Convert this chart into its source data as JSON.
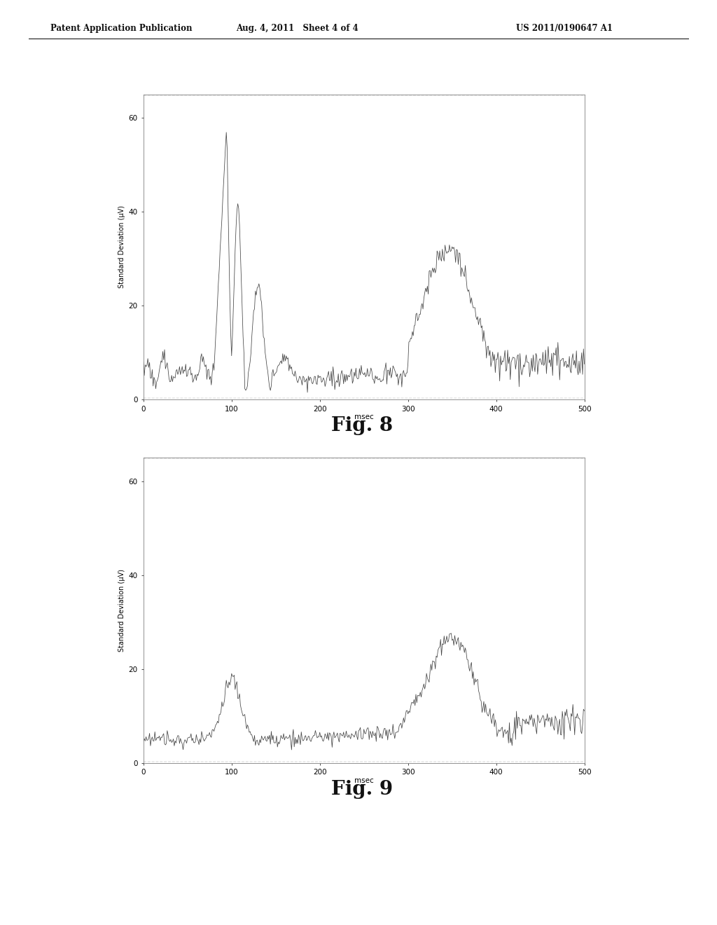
{
  "header_left": "Patent Application Publication",
  "header_mid": "Aug. 4, 2011   Sheet 4 of 4",
  "header_right": "US 2011/0190647 A1",
  "fig8_label": "Fig. 8",
  "fig9_label": "Fig. 9",
  "xlabel": "msec",
  "ylabel": "Standard Deviation (μV)",
  "xlim": [
    0,
    500
  ],
  "fig8_ylim": [
    0,
    65
  ],
  "fig9_ylim": [
    0,
    65
  ],
  "fig8_yticks": [
    0,
    20,
    40,
    60
  ],
  "fig9_yticks": [
    0,
    20,
    40,
    60
  ],
  "xticks": [
    0,
    100,
    200,
    300,
    400,
    500
  ],
  "background_color": "#ffffff",
  "line_color": "#444444"
}
